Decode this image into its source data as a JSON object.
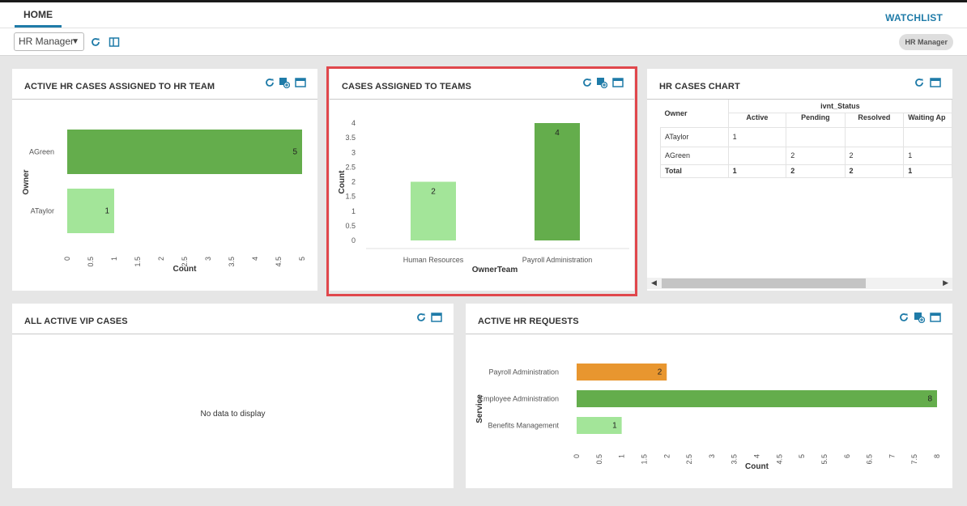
{
  "tabs": {
    "home": "HOME",
    "watchlist": "WATCHLIST"
  },
  "toolbar": {
    "role_value": "HR Manager",
    "user_badge": "HR Manager"
  },
  "panels": {
    "active_hr_cases": {
      "title": "ACTIVE HR CASES ASSIGNED TO HR TEAM",
      "ylabel": "Owner",
      "xlabel": "Count",
      "xticks": [
        "0",
        "0.5",
        "1",
        "1.5",
        "2",
        "2.5",
        "3",
        "3.5",
        "4",
        "4.5",
        "5"
      ],
      "categories": [
        "AGreen",
        "ATaylor"
      ],
      "values": [
        5,
        1
      ],
      "colors": [
        "#64ad4c",
        "#a3e599"
      ]
    },
    "cases_teams": {
      "title": "CASES ASSIGNED TO TEAMS",
      "ylabel": "Count",
      "xlabel": "OwnerTeam",
      "yticks": [
        "0",
        "0.5",
        "1",
        "1.5",
        "2",
        "2.5",
        "3",
        "3.5",
        "4"
      ],
      "categories": [
        "Human Resources",
        "Payroll Administration"
      ],
      "values": [
        2,
        4
      ],
      "colors": [
        "#a3e599",
        "#64ad4c"
      ]
    },
    "hr_cases_chart": {
      "title": "HR CASES CHART",
      "owner_header": "Owner",
      "group_header": "ivnt_Status",
      "columns": [
        "Active",
        "Pending",
        "Resolved",
        "Waiting Ap"
      ],
      "rows": [
        {
          "owner": "ATaylor",
          "cells": [
            "1",
            "",
            "",
            ""
          ]
        },
        {
          "owner": "AGreen",
          "cells": [
            "",
            "2",
            "2",
            "1"
          ]
        },
        {
          "owner": "Total",
          "cells": [
            "1",
            "2",
            "2",
            "1"
          ]
        }
      ]
    },
    "vip_cases": {
      "title": "ALL ACTIVE VIP CASES",
      "empty_text": "No data to display"
    },
    "hr_requests": {
      "title": "ACTIVE HR REQUESTS",
      "ylabel": "Service",
      "xlabel": "Count",
      "xticks": [
        "0",
        "0.5",
        "1",
        "1.5",
        "2",
        "2.5",
        "3",
        "3.5",
        "4",
        "4.5",
        "5",
        "5.5",
        "6",
        "6.5",
        "7",
        "7.5",
        "8"
      ],
      "categories": [
        "Payroll Administration",
        "Employee Administration",
        "Benefits Management"
      ],
      "values": [
        2,
        8,
        1
      ],
      "colors": [
        "#e8962f",
        "#64ad4c",
        "#a3e599"
      ]
    }
  },
  "chart_data": [
    {
      "type": "bar",
      "title": "ACTIVE HR CASES ASSIGNED TO HR TEAM",
      "orientation": "horizontal",
      "categories": [
        "AGreen",
        "ATaylor"
      ],
      "values": [
        5,
        1
      ],
      "xlabel": "Count",
      "ylabel": "Owner",
      "xlim": [
        0,
        5
      ]
    },
    {
      "type": "bar",
      "title": "CASES ASSIGNED TO TEAMS",
      "categories": [
        "Human Resources",
        "Payroll Administration"
      ],
      "values": [
        2,
        4
      ],
      "xlabel": "OwnerTeam",
      "ylabel": "Count",
      "ylim": [
        0,
        4
      ]
    },
    {
      "type": "table",
      "title": "HR CASES CHART",
      "columns": [
        "Owner",
        "Active",
        "Pending",
        "Resolved",
        "Waiting Ap"
      ],
      "rows": [
        [
          "ATaylor",
          "1",
          "",
          "",
          ""
        ],
        [
          "AGreen",
          "",
          "2",
          "2",
          "1"
        ],
        [
          "Total",
          "1",
          "2",
          "2",
          "1"
        ]
      ]
    },
    {
      "type": "bar",
      "title": "ACTIVE HR REQUESTS",
      "orientation": "horizontal",
      "categories": [
        "Payroll Administration",
        "Employee Administration",
        "Benefits Management"
      ],
      "values": [
        2,
        8,
        1
      ],
      "xlabel": "Count",
      "ylabel": "Service",
      "xlim": [
        0,
        8
      ]
    }
  ]
}
